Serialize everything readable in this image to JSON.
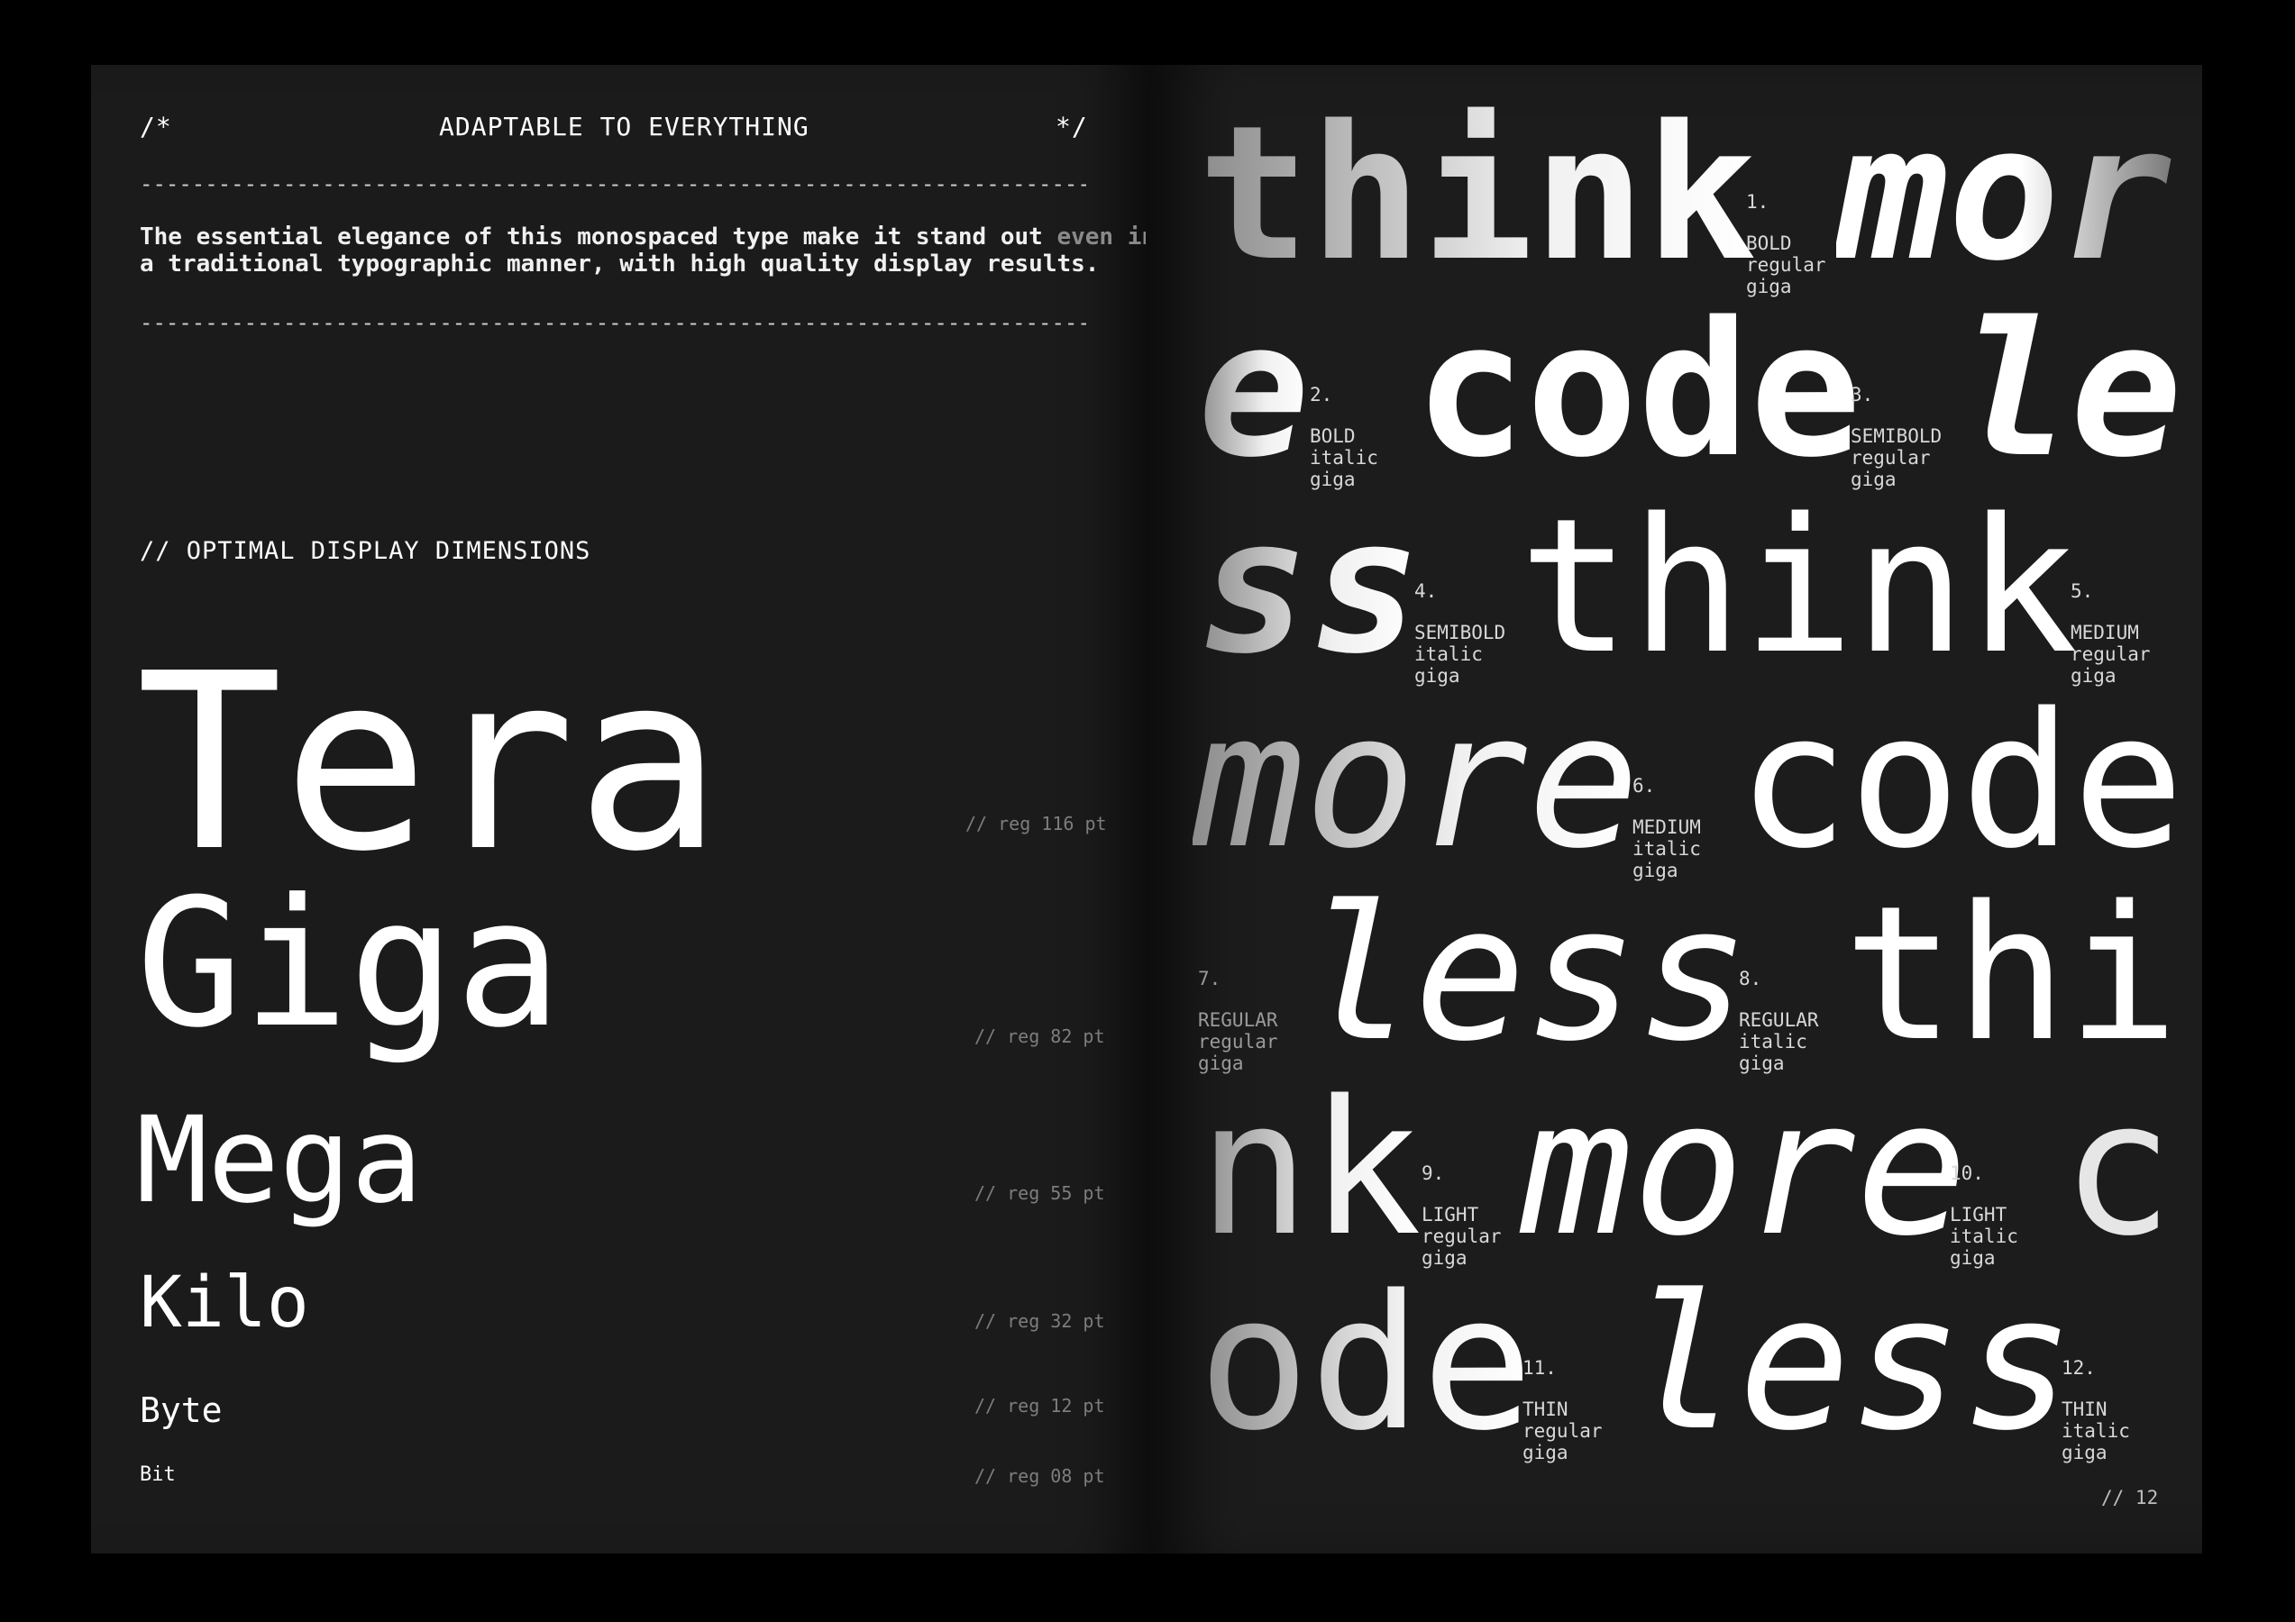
{
  "left": {
    "header": {
      "open_comment": "/*",
      "title": "ADAPTABLE TO EVERYTHING",
      "close_comment": "*/"
    },
    "rule": "--------------------------------------------------------------------------",
    "intro": {
      "line1": "The essential elegance of this monospaced type make it stand out",
      "line1_dim": "even in",
      "line2": "a traditional typographic manner, with high quality display results."
    },
    "section_title": "// OPTIMAL DISPLAY DIMENSIONS",
    "specimens": [
      {
        "word": "Tera",
        "note": "// reg 116 pt"
      },
      {
        "word": "Giga",
        "note": "// reg 82 pt"
      },
      {
        "word": "Mega",
        "note": "// reg 55 pt"
      },
      {
        "word": "Kilo",
        "note": "// reg 32 pt"
      },
      {
        "word": "Byte",
        "note": "// reg 12 pt"
      },
      {
        "word": "Bit",
        "note": "// reg 08 pt"
      }
    ]
  },
  "right": {
    "fragments": [
      "think",
      "mor",
      "e",
      "code",
      "le",
      "ss",
      "think",
      "more",
      "code",
      "less",
      "thi",
      "nk",
      "more",
      "c",
      "ode",
      "less"
    ],
    "labels": [
      {
        "num": "1.",
        "weight": "BOLD",
        "style": "regular",
        "size": "giga"
      },
      {
        "num": "2.",
        "weight": "BOLD",
        "style": "italic",
        "size": "giga"
      },
      {
        "num": "3.",
        "weight": "SEMIBOLD",
        "style": "regular",
        "size": "giga"
      },
      {
        "num": "4.",
        "weight": "SEMIBOLD",
        "style": "italic",
        "size": "giga"
      },
      {
        "num": "5.",
        "weight": "MEDIUM",
        "style": "regular",
        "size": "giga"
      },
      {
        "num": "6.",
        "weight": "MEDIUM",
        "style": "italic",
        "size": "giga"
      },
      {
        "num": "7.",
        "weight": "REGULAR",
        "style": "regular",
        "size": "giga"
      },
      {
        "num": "8.",
        "weight": "REGULAR",
        "style": "italic",
        "size": "giga"
      },
      {
        "num": "9.",
        "weight": "LIGHT",
        "style": "regular",
        "size": "giga"
      },
      {
        "num": "10.",
        "weight": "LIGHT",
        "style": "italic",
        "size": "giga"
      },
      {
        "num": "11.",
        "weight": "THIN",
        "style": "regular",
        "size": "giga"
      },
      {
        "num": "12.",
        "weight": "THIN",
        "style": "italic",
        "size": "giga"
      }
    ],
    "page_number": "// 12"
  }
}
